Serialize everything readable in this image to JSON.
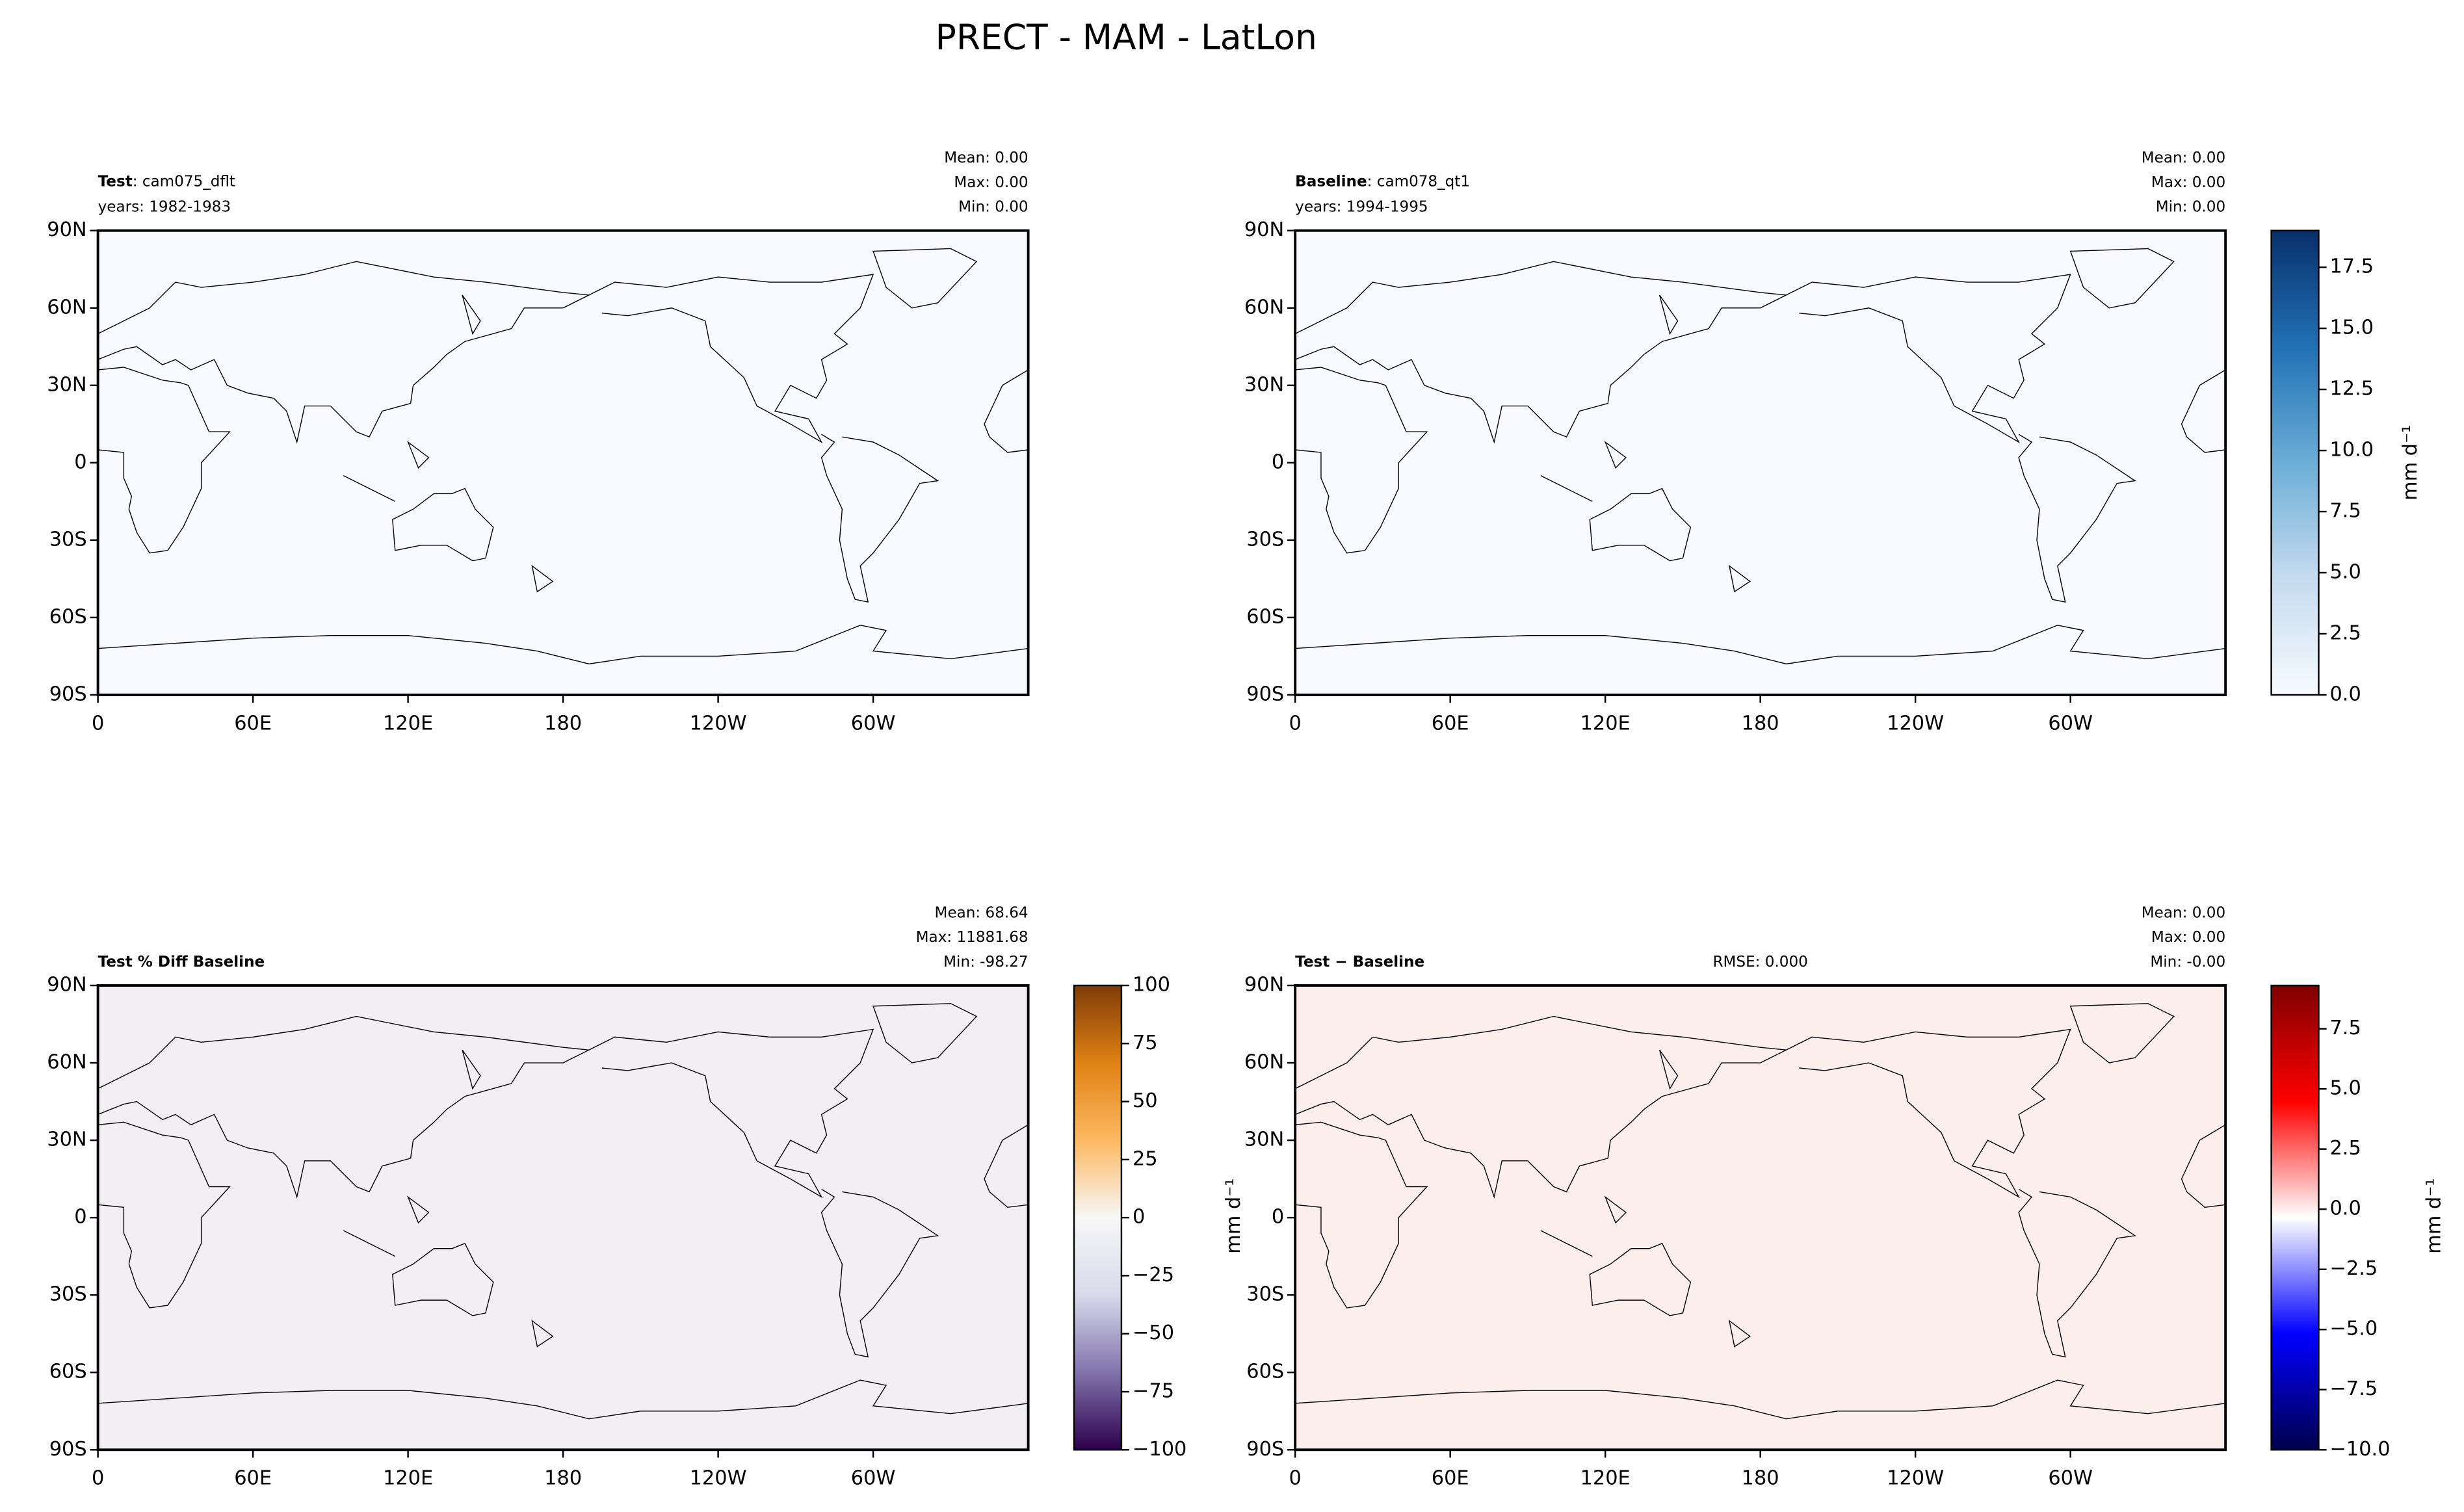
{
  "title": "PRECT - MAM - LatLon",
  "lat_ticks": [
    {
      "value": 90,
      "label": "90N"
    },
    {
      "value": 60,
      "label": "60N"
    },
    {
      "value": 30,
      "label": "30N"
    },
    0,
    {
      "value": -30,
      "label": "30S"
    },
    {
      "value": -60,
      "label": "60S"
    },
    {
      "value": -90,
      "label": "90S"
    }
  ],
  "ylim": [
    -90,
    90
  ],
  "lon_ticks": [
    0,
    {
      "value": 60,
      "label": "60E"
    },
    {
      "value": 120,
      "label": "120E"
    },
    180,
    {
      "value": 240,
      "label": "120W"
    },
    {
      "value": 300,
      "label": "60W"
    }
  ],
  "xlim": [
    0,
    360
  ],
  "panels": [
    {
      "title_bold": "Test",
      "title_rest": ": cam075_dflt",
      "years": "years: 1982-1983",
      "stats": [
        "Mean:  0.00",
        "Max:  0.00",
        "Min:  0.00"
      ],
      "fill": "#f7fbff"
    },
    {
      "title_bold": "Baseline",
      "title_rest": ": cam078_qt1",
      "years": "years: 1994-1995",
      "stats": [
        "Mean:  0.00",
        "Max:  0.00",
        "Min:  0.00"
      ],
      "fill": "#f7fbff"
    },
    {
      "title_bold": "Test % Diff Baseline",
      "stats": [
        "Mean: 68.64",
        "Max: 11881.68",
        "Min: -98.27"
      ],
      "fill": "#f1eef4"
    },
    {
      "title_bold": "Test − Baseline",
      "rmse": "RMSE: 0.000",
      "stats": [
        "Mean:  0.00",
        "Max:  0.00",
        "Min: -0.00"
      ],
      "fill": "#fdeeee"
    }
  ],
  "colorbars": [
    {
      "ylim": [
        0,
        19
      ],
      "yticks": [
        {
          "value": 0,
          "label": "0.0"
        },
        2.5,
        {
          "value": 5,
          "label": "5.0"
        },
        7.5,
        {
          "value": 10,
          "label": "10.0"
        },
        12.5,
        {
          "value": 15,
          "label": "15.0"
        },
        17.5
      ],
      "label": "mm d⁻¹",
      "colors": [
        "#f7fbff",
        "#c6dbef",
        "#6baed6",
        "#2171b5",
        "#08306b"
      ]
    },
    {
      "ylim": [
        -100,
        100
      ],
      "yticks": [
        {
          "value": -100,
          "label": "−100"
        },
        {
          "value": -75,
          "label": "−75"
        },
        {
          "value": -50,
          "label": "−50"
        },
        {
          "value": -25,
          "label": "−25"
        },
        0,
        25,
        50,
        75,
        100
      ],
      "label": "mm d⁻¹",
      "colors": [
        "#2d004b",
        "#8073ac",
        "#d8daeb",
        "#f7f7f7",
        "#fdb863",
        "#e08214",
        "#7f3b08"
      ]
    },
    {
      "ylim": [
        -10,
        9.3
      ],
      "yticks": [
        {
          "value": -10,
          "label": "−10.0"
        },
        {
          "value": -7.5,
          "label": "−7.5"
        },
        {
          "value": -5,
          "label": "−5.0"
        },
        {
          "value": -2.5,
          "label": "−2.5"
        },
        {
          "value": 0,
          "label": "0.0"
        },
        2.5,
        {
          "value": 5,
          "label": "5.0"
        },
        7.5
      ],
      "label": "mm d⁻¹",
      "colors": [
        "#00004c",
        "#0000ff",
        "#ffffff",
        "#ff0000",
        "#800000"
      ]
    }
  ]
}
